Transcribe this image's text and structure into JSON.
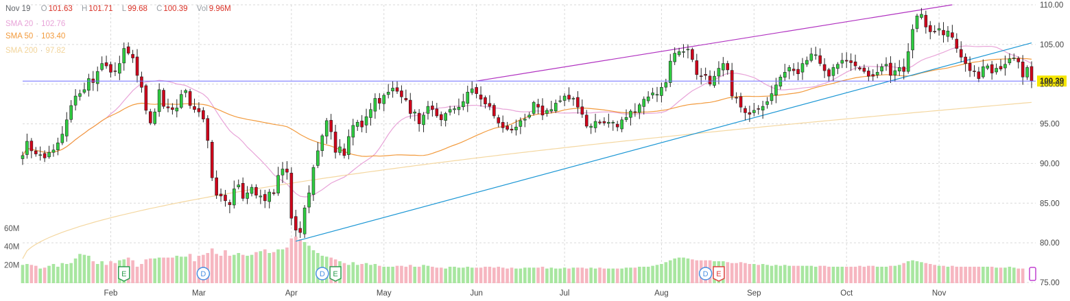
{
  "legend": {
    "date": "Nov 19",
    "open_label": "O",
    "open": "101.63",
    "high_label": "H",
    "high": "101.71",
    "low_label": "L",
    "low": "99.68",
    "close_label": "C",
    "close": "100.39",
    "vol_label": "Vol",
    "vol": "9.96M",
    "sma20_label": "SMA 20",
    "sma20": "102.76",
    "sma50_label": "SMA 50",
    "sma50": "103.40",
    "sma200_label": "SMA 200",
    "sma200": "97.82"
  },
  "colors": {
    "up": "#2ecc40",
    "down": "#d0021b",
    "vol_up": "#a8e6a0",
    "vol_down": "#f6b6c0",
    "sma20": "#e8a3d8",
    "sma50": "#f29a3c",
    "sma200": "#f4d7a0",
    "price_line": "#6c6cff",
    "channel_top": "#b030c0",
    "trend": "#1a96d4",
    "grid": "#d9d9d9",
    "price_tag": "#f5e600",
    "event_d": "#4a90e2",
    "event_e": "#2e9e50",
    "event_e_red": "#e04040"
  },
  "chart_data": {
    "type": "candlestick",
    "ylim": [
      75,
      110
    ],
    "yticks": [
      75,
      80,
      85,
      90,
      95,
      100,
      105,
      110
    ],
    "ytick_labels": [
      "75.00",
      "80.00",
      "85.00",
      "90.00",
      "95.00",
      "100.00",
      "105.00",
      "110.00"
    ],
    "xtick_labels": [
      "Feb",
      "Mar",
      "Apr",
      "May",
      "Jun",
      "Jul",
      "Aug",
      "Sep",
      "Oct",
      "Nov"
    ],
    "xtick_index": [
      20,
      40,
      61,
      82,
      103,
      123,
      145,
      166,
      187,
      208
    ],
    "volume_labels": [
      "60M",
      "40M",
      "20M"
    ],
    "volume_ticks": [
      60,
      40,
      20
    ],
    "volume_max": 90,
    "price_line": 100.39,
    "price_line_label": "100.39",
    "closes": [
      91.0,
      92.8,
      91.6,
      91.2,
      91.1,
      90.7,
      91.4,
      91.7,
      92.6,
      93.7,
      95.5,
      97.3,
      98.5,
      98.8,
      99.3,
      100.7,
      100.2,
      101.6,
      102.6,
      102.3,
      101.5,
      101.6,
      102.6,
      104.5,
      103.9,
      103.3,
      101.1,
      99.6,
      96.7,
      95.1,
      96.5,
      99.3,
      97.2,
      97.0,
      96.8,
      97.0,
      98.7,
      99.2,
      97.3,
      96.8,
      96.5,
      95.6,
      92.9,
      88.2,
      86.0,
      85.9,
      85.3,
      84.8,
      86.8,
      87.3,
      85.6,
      86.3,
      87.0,
      86.0,
      85.9,
      85.3,
      86.4,
      86.2,
      88.5,
      89.3,
      88.9,
      83.1,
      81.6,
      81.3,
      84.4,
      86.3,
      89.5,
      91.6,
      93.5,
      95.4,
      94.0,
      91.4,
      92.1,
      91.0,
      93.4,
      94.8,
      95.2,
      94.6,
      95.9,
      96.8,
      98.2,
      97.6,
      98.6,
      99.0,
      99.5,
      99.1,
      98.4,
      98.0,
      96.3,
      96.5,
      95.0,
      96.1,
      97.2,
      96.8,
      96.0,
      95.5,
      96.3,
      96.8,
      96.9,
      97.1,
      97.8,
      99.0,
      99.4,
      98.8,
      98.1,
      97.5,
      97.2,
      96.0,
      95.1,
      94.5,
      94.3,
      94.2,
      94.6,
      95.4,
      95.6,
      96.1,
      97.7,
      97.1,
      96.1,
      96.7,
      96.8,
      97.6,
      97.9,
      98.5,
      98.1,
      98.2,
      97.1,
      96.2,
      94.7,
      94.7,
      95.3,
      95.1,
      95.1,
      95.2,
      95.2,
      94.6,
      95.5,
      95.8,
      96.6,
      96.5,
      97.4,
      98.1,
      98.4,
      98.9,
      98.7,
      99.6,
      100.2,
      102.9,
      103.9,
      104.1,
      104.1,
      104.4,
      103.1,
      101.2,
      101.0,
      101.1,
      100.0,
      101.0,
      102.0,
      102.6,
      101.8,
      98.5,
      98.3,
      97.1,
      96.4,
      96.2,
      96.7,
      96.9,
      97.2,
      97.8,
      98.8,
      99.9,
      100.9,
      101.5,
      102.1,
      101.7,
      101.3,
      102.6,
      103.0,
      103.8,
      103.7,
      102.6,
      101.7,
      101.0,
      102.1,
      102.5,
      103.0,
      102.9,
      102.7,
      102.3,
      101.9,
      101.6,
      101.0,
      101.0,
      101.5,
      102.2,
      102.5,
      101.1,
      101.7,
      102.1,
      101.6,
      104.1,
      106.9,
      108.6,
      108.8,
      107.2,
      106.6,
      106.6,
      107.0,
      106.2,
      106.7,
      105.9,
      104.5,
      103.4,
      102.6,
      101.7,
      101.6,
      100.7,
      102.2,
      102.3,
      101.4,
      102.0,
      101.9,
      102.5,
      103.2,
      103.3,
      102.8,
      100.9,
      102.1,
      100.4
    ],
    "volumes": [
      20,
      21,
      20,
      19,
      16,
      17,
      19,
      21,
      18,
      22,
      21,
      22,
      27,
      32,
      31,
      30,
      24,
      21,
      24,
      20,
      24,
      22,
      25,
      26,
      28,
      25,
      18,
      21,
      26,
      27,
      27,
      28,
      28,
      28,
      28,
      30,
      29,
      29,
      32,
      24,
      30,
      31,
      33,
      38,
      32,
      30,
      36,
      30,
      31,
      33,
      31,
      30,
      31,
      34,
      35,
      37,
      33,
      34,
      37,
      37,
      39,
      49,
      51,
      48,
      45,
      41,
      36,
      33,
      30,
      29,
      28,
      26,
      24,
      22,
      20,
      23,
      20,
      21,
      22,
      20,
      21,
      19,
      18,
      18,
      18,
      19,
      19,
      18,
      20,
      18,
      18,
      20,
      19,
      18,
      17,
      17,
      16,
      18,
      18,
      17,
      17,
      18,
      17,
      17,
      17,
      18,
      18,
      17,
      18,
      17,
      16,
      17,
      16,
      16,
      17,
      17,
      17,
      17,
      18,
      16,
      17,
      16,
      16,
      17,
      16,
      17,
      17,
      17,
      16,
      17,
      16,
      17,
      16,
      16,
      16,
      16,
      16,
      17,
      17,
      17,
      18,
      18,
      18,
      19,
      20,
      21,
      23,
      25,
      27,
      28,
      28,
      27,
      26,
      25,
      25,
      25,
      25,
      24,
      24,
      24,
      23,
      22,
      22,
      23,
      22,
      21,
      21,
      20,
      21,
      20,
      19,
      20,
      19,
      20,
      19,
      19,
      19,
      19,
      19,
      19,
      18,
      19,
      19,
      18,
      18,
      18,
      18,
      18,
      18,
      18,
      19,
      18,
      19,
      19,
      18,
      18,
      18,
      19,
      19,
      20,
      22,
      24,
      25,
      24,
      23,
      22,
      21,
      20,
      19,
      19,
      18,
      19,
      18,
      18,
      18,
      18,
      18,
      18,
      18,
      18,
      18,
      17,
      17,
      17,
      18,
      17,
      16,
      16
    ],
    "events": [
      {
        "label": "E",
        "index": 23,
        "style": "earnings"
      },
      {
        "label": "D",
        "index": 41,
        "style": "dividend"
      },
      {
        "label": "D",
        "index": 68,
        "style": "dividend"
      },
      {
        "label": "E",
        "index": 71,
        "style": "earnings"
      },
      {
        "label": "D",
        "index": 155,
        "style": "dividend"
      },
      {
        "label": "E",
        "index": 158,
        "style": "earnings-red"
      }
    ]
  }
}
